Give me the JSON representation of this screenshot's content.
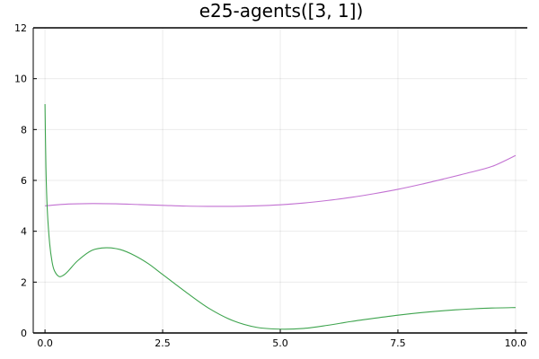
{
  "chart_data": {
    "type": "line",
    "title": "e25-agents([3, 1])",
    "xlabel": "",
    "ylabel": "",
    "xlim": [
      -0.25,
      10.25
    ],
    "ylim": [
      0,
      12
    ],
    "x_ticks": [
      0.0,
      2.5,
      5.0,
      7.5,
      10.0
    ],
    "x_tick_labels": [
      "0.0",
      "2.5",
      "5.0",
      "7.5",
      "10.0"
    ],
    "y_ticks": [
      0,
      2,
      4,
      6,
      8,
      10,
      12
    ],
    "y_tick_labels": [
      "0",
      "2",
      "4",
      "6",
      "8",
      "10",
      "12"
    ],
    "grid": true,
    "legend": "none",
    "series": [
      {
        "color": "#c271d2",
        "x": [
          0,
          0.5,
          1.0,
          1.5,
          2.0,
          2.5,
          3.0,
          3.5,
          4.0,
          4.5,
          5.0,
          5.5,
          6.0,
          6.5,
          7.0,
          7.5,
          8.0,
          8.5,
          9.0,
          9.5,
          10.0
        ],
        "y": [
          5.0,
          5.07,
          5.09,
          5.08,
          5.05,
          5.02,
          4.99,
          4.98,
          4.98,
          5.0,
          5.04,
          5.11,
          5.21,
          5.33,
          5.48,
          5.65,
          5.85,
          6.07,
          6.3,
          6.55,
          6.98
        ]
      },
      {
        "color": "#3ea44e",
        "x": [
          0,
          0.02,
          0.05,
          0.1,
          0.15,
          0.2,
          0.3,
          0.4,
          0.5,
          0.7,
          1.0,
          1.3,
          1.6,
          1.9,
          2.2,
          2.5,
          3.0,
          3.5,
          4.0,
          4.5,
          5.0,
          5.5,
          6.0,
          6.5,
          7.0,
          7.5,
          8.0,
          8.5,
          9.0,
          9.5,
          10.0
        ],
        "y": [
          9.0,
          6.5,
          4.8,
          3.5,
          2.8,
          2.45,
          2.22,
          2.28,
          2.45,
          2.85,
          3.25,
          3.35,
          3.28,
          3.05,
          2.72,
          2.3,
          1.6,
          0.95,
          0.48,
          0.22,
          0.15,
          0.18,
          0.3,
          0.45,
          0.58,
          0.7,
          0.8,
          0.88,
          0.94,
          0.98,
          1.0
        ]
      }
    ]
  }
}
